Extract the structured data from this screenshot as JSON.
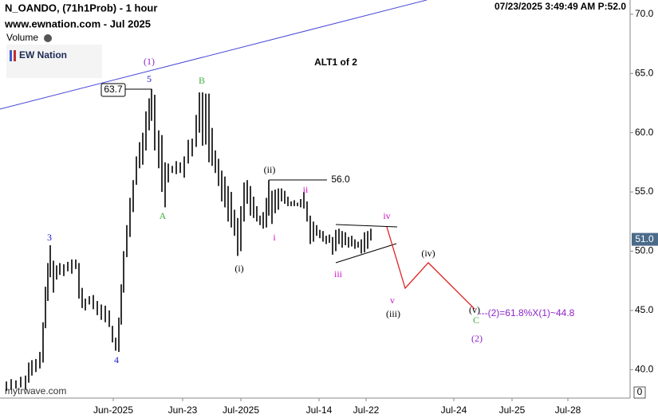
{
  "header": {
    "symbol": "N_OANDO, (71h1Prob) - 1 hour",
    "site": "www.ewnation.com  - Jul 2025",
    "volume": "Volume",
    "logo": "EW Nation",
    "timestamp": "07/23/2025 3:49:49 AM  P:52.0",
    "footer": "mytrwave.com",
    "volume_axis": "0"
  },
  "chart_data": {
    "type": "ohlc",
    "title": "ALT1 of 2",
    "color": "#000000",
    "x": [
      8,
      14,
      20,
      26,
      32,
      36,
      40,
      45,
      50,
      54,
      57,
      60,
      63,
      67,
      71,
      75,
      80,
      85,
      90,
      95,
      99,
      103,
      107,
      112,
      117,
      122,
      127,
      132,
      137,
      141,
      145,
      149,
      152,
      155,
      159,
      163,
      167,
      171,
      175,
      179,
      183,
      187,
      190,
      194,
      199,
      203,
      207,
      211,
      216,
      221,
      226,
      231,
      236,
      241,
      246,
      250,
      254,
      258,
      262,
      266,
      270,
      274,
      278,
      282,
      286,
      290,
      294,
      298,
      302,
      306,
      310,
      314,
      318,
      322,
      326,
      330,
      334,
      337,
      341,
      345,
      349,
      353,
      357,
      361,
      365,
      369,
      373,
      377,
      381,
      385,
      389,
      393,
      397,
      401,
      405,
      409,
      413,
      417,
      421,
      425,
      429,
      433,
      437,
      441,
      445,
      449,
      453,
      457,
      461,
      465
    ],
    "high": [
      39.0,
      39.2,
      39.1,
      39.4,
      39.5,
      40.6,
      40.8,
      40.9,
      41.5,
      44.0,
      47.0,
      49.0,
      50.5,
      49.2,
      48.8,
      49.0,
      48.9,
      49.1,
      49.3,
      49.3,
      49.0,
      46.9,
      46.0,
      46.2,
      46.3,
      45.8,
      45.5,
      45.4,
      45.0,
      43.7,
      42.7,
      44.4,
      47.2,
      50.0,
      52.2,
      54.5,
      56.0,
      58.0,
      59.2,
      60.0,
      61.8,
      62.9,
      63.7,
      63.2,
      60.2,
      59.8,
      57.5,
      57.4,
      57.2,
      57.6,
      57.5,
      58.0,
      59.4,
      59.5,
      61.5,
      63.4,
      63.4,
      63.3,
      63.3,
      60.4,
      58.5,
      57.8,
      56.8,
      56.3,
      55.5,
      55.0,
      53.5,
      52.8,
      53.8,
      55.8,
      56.0,
      55.5,
      54.6,
      53.8,
      53.0,
      53.3,
      54.5,
      56.0,
      55.1,
      55.2,
      55.3,
      55.3,
      55.1,
      54.6,
      54.2,
      54.3,
      54.1,
      54.4,
      55.0,
      54.2,
      53.0,
      52.5,
      52.2,
      51.8,
      51.7,
      51.3,
      51.4,
      51.2,
      51.8,
      51.9,
      51.7,
      51.6,
      51.2,
      51.3,
      51.0,
      50.8,
      51.0,
      51.6,
      51.7,
      51.9
    ],
    "low": [
      38.2,
      38.3,
      38.4,
      38.5,
      38.3,
      38.9,
      39.5,
      39.8,
      40.1,
      40.6,
      43.5,
      45.8,
      47.8,
      46.5,
      47.6,
      48.0,
      47.9,
      48.3,
      48.1,
      48.5,
      46.0,
      45.2,
      45.0,
      45.5,
      45.1,
      44.6,
      44.2,
      44.0,
      43.6,
      42.3,
      41.6,
      41.5,
      43.8,
      46.5,
      49.5,
      51.2,
      53.3,
      55.6,
      57.0,
      57.3,
      58.5,
      60.2,
      61.0,
      58.5,
      57.0,
      55.0,
      53.7,
      55.8,
      56.6,
      56.5,
      56.6,
      56.2,
      57.4,
      58.0,
      58.8,
      60.0,
      58.9,
      59.0,
      57.5,
      57.2,
      56.6,
      55.5,
      54.2,
      53.7,
      52.5,
      52.0,
      51.3,
      49.6,
      50.0,
      52.5,
      54.0,
      53.0,
      52.8,
      52.5,
      52.2,
      51.9,
      52.0,
      53.0,
      52.3,
      53.2,
      53.5,
      54.2,
      54.0,
      53.8,
      53.8,
      53.8,
      53.8,
      53.7,
      53.6,
      52.5,
      50.6,
      50.8,
      51.3,
      51.1,
      50.8,
      50.6,
      50.7,
      49.7,
      50.0,
      50.6,
      50.3,
      50.5,
      50.3,
      50.4,
      50.2,
      50.3,
      49.8,
      49.9,
      50.2,
      50.9
    ],
    "xlim": [
      0,
      790
    ],
    "ylim": [
      37.6,
      71.2
    ],
    "xticks": [
      {
        "value": 142,
        "label": "Jun-2025"
      },
      {
        "value": 229,
        "label": "Jun-23"
      },
      {
        "value": 302,
        "label": "Jul-2025"
      },
      {
        "value": 400,
        "label": "Jul-14"
      },
      {
        "value": 459,
        "label": "Jul-22"
      },
      {
        "value": 569,
        "label": "Jul-24"
      },
      {
        "value": 642,
        "label": "Jul-25"
      },
      {
        "value": 712,
        "label": "Jul-28"
      }
    ],
    "yticks": [
      {
        "value": 40,
        "label": "40.0"
      },
      {
        "value": 45,
        "label": "45.0"
      },
      {
        "value": 50,
        "label": "50.0"
      },
      {
        "value": 55,
        "label": "55.0"
      },
      {
        "value": 60,
        "label": "60.0"
      },
      {
        "value": 65,
        "label": "65.0"
      },
      {
        "value": 70,
        "label": "70.0"
      }
    ],
    "last_price": {
      "value": 51,
      "label": "51.0"
    },
    "annotations": [
      {
        "text": "(1)",
        "color": "#8e24c8"
      },
      {
        "text": "5",
        "color": "#1a1ad0"
      },
      {
        "text": "B",
        "color": "#3fae3f"
      },
      {
        "text": "A",
        "color": "#3fae3f"
      },
      {
        "text": "3",
        "color": "#1a1ad0"
      },
      {
        "text": "4",
        "color": "#1a1ad0"
      },
      {
        "text": "(i)",
        "color": "#000000"
      },
      {
        "text": "(ii)",
        "color": "#000000"
      },
      {
        "text": "i",
        "color": "#d010c8"
      },
      {
        "text": "ii",
        "color": "#d010c8"
      },
      {
        "text": "iii",
        "color": "#d010c8"
      },
      {
        "text": "iv",
        "color": "#d010c8"
      },
      {
        "text": "(iv)",
        "color": "#000000"
      },
      {
        "text": "v",
        "color": "#d010c8"
      },
      {
        "text": "(iii)",
        "color": "#000000"
      },
      {
        "text": "(v)",
        "color": "#000000"
      },
      {
        "text": "C",
        "color": "#3fae3f"
      },
      {
        "text": "(2)",
        "color": "#8e24c8"
      },
      {
        "text": "56.0",
        "color": "#000000"
      },
      {
        "text": "63.7",
        "color": "#000000"
      },
      {
        "text": "---(2)=61.8%X(1)~44.8",
        "color": "#8e24c8"
      }
    ]
  }
}
